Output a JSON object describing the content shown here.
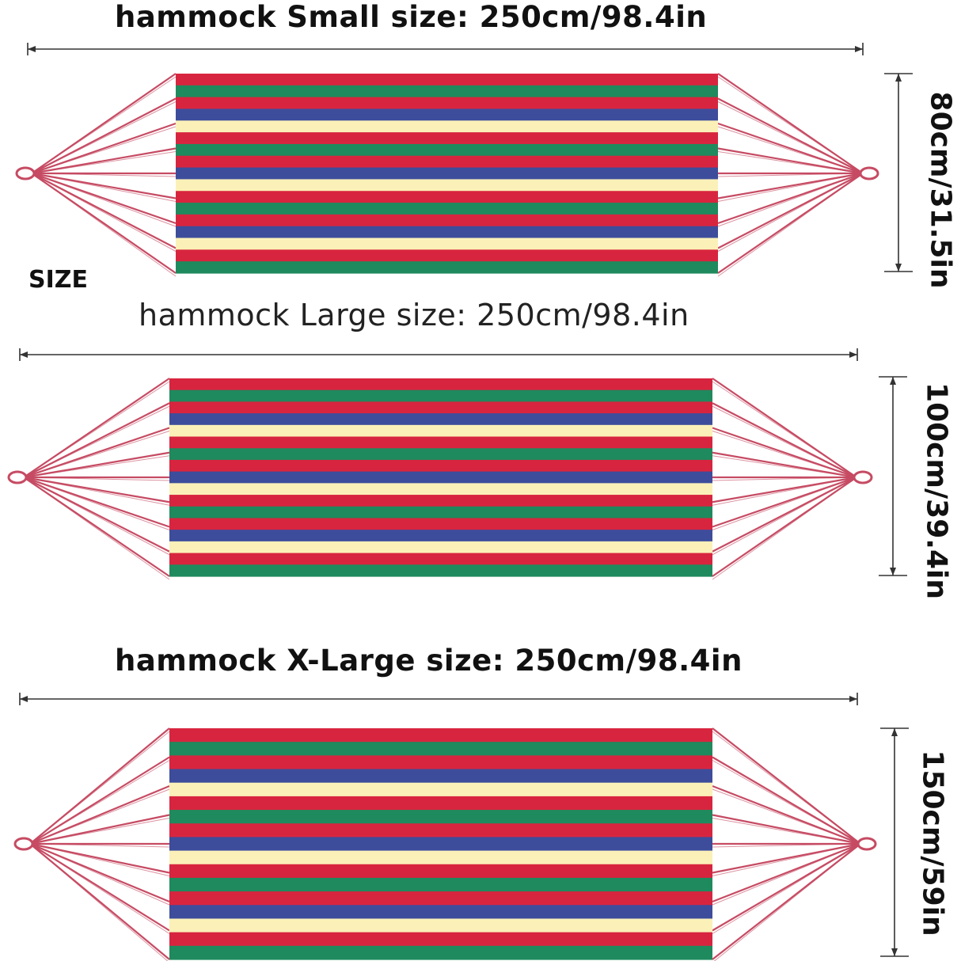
{
  "size_label": "SIZE",
  "colors": {
    "red": "#d8253f",
    "green": "#1f8a5e",
    "blue": "#3d4d9c",
    "cream": "#fbf1b8",
    "rope": "#c64b63",
    "line": "#333333"
  },
  "stripe_pattern": [
    "red",
    "green",
    "red",
    "blue",
    "cream",
    "red",
    "green",
    "red",
    "blue",
    "cream",
    "red",
    "green",
    "red",
    "blue",
    "cream",
    "red",
    "green"
  ],
  "hammocks": [
    {
      "name": "Small",
      "title": "hammock Small size: 250cm/98.4in",
      "length": "250cm/98.4in",
      "width_label": "80cm/31.5in",
      "width_cm": 80
    },
    {
      "name": "Large",
      "title": "hammock Large size: 250cm/98.4in",
      "length": "250cm/98.4in",
      "width_label": "100cm/39.4in",
      "width_cm": 100
    },
    {
      "name": "X-Large",
      "title": "hammock X-Large size: 250cm/98.4in",
      "length": "250cm/98.4in",
      "width_label": "150cm/59in",
      "width_cm": 150
    }
  ]
}
